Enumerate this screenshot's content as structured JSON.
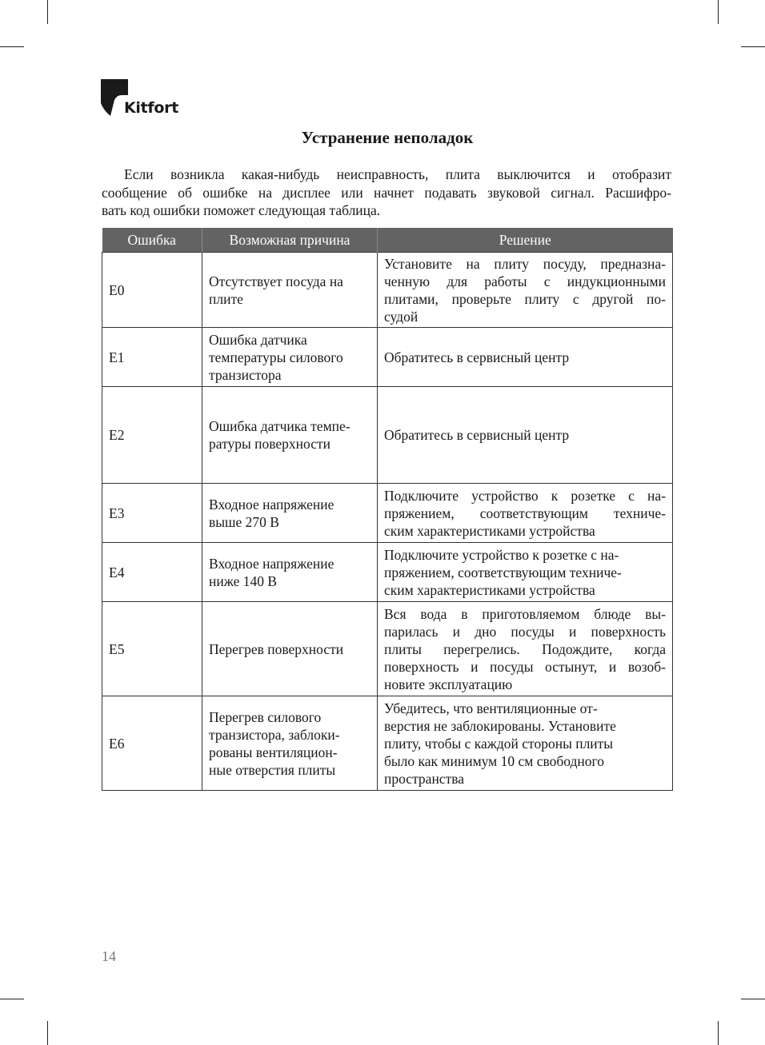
{
  "brand": "Kitfort",
  "title": "Устранение неполадок",
  "intro_lines": [
    "Если возникла какая-нибудь неисправность, плита выключится и отобразит",
    "сообщение об ошибке на дисплее или начнет подавать звуковой сигнал. Расшифро-",
    "вать код ошибки поможет следующая таблица."
  ],
  "table": {
    "headers": [
      "Ошибка",
      "Возможная причина",
      "Решение"
    ],
    "rows": [
      {
        "code": "E0",
        "h": 94,
        "cause": [
          "Отсутствует посуда на",
          "плите"
        ],
        "solution": [
          "Установите на плиту посуду, предназна-",
          "ченную для работы с индукционными",
          "плитами, проверьте плиту с другой по-",
          "судой"
        ],
        "justify": true
      },
      {
        "code": "E1",
        "h": 74,
        "cause": [
          "Ошибка датчика",
          "температуры силового",
          "транзистора"
        ],
        "solution": [
          "Обратитесь в сервисный центр"
        ],
        "justify": false
      },
      {
        "code": "E2",
        "h": 121,
        "cause": [
          "Ошибка датчика темпе-",
          "ратуры поверхности"
        ],
        "solution": [
          "Обратитесь в сервисный центр"
        ],
        "justify": false
      },
      {
        "code": "E3",
        "h": 74,
        "cause": [
          "Входное напряжение",
          "выше 270 В"
        ],
        "solution": [
          "Подключите устройство к розетке с на-",
          "пряжением, соответствующим техниче-",
          "ским характеристиками устройства"
        ],
        "justify": true
      },
      {
        "code": "E4",
        "h": 74,
        "cause": [
          "Входное напряжение",
          "ниже 140 В"
        ],
        "solution": [
          "Подключите устройство к розетке с на-",
          "пряжением, соответствующим техниче-",
          "ским характеристиками устройства"
        ],
        "justify": false
      },
      {
        "code": "E5",
        "h": 118,
        "cause": [
          "Перегрев поверхности"
        ],
        "solution": [
          "Вся вода в приготовляемом блюде вы-",
          "парилась и дно посуды и поверхность",
          "плиты перегрелись. Подождите, когда",
          "поверхность и посуды остынут, и возоб-",
          "новите эксплуатацию"
        ],
        "justify": true
      },
      {
        "code": "E6",
        "h": 118,
        "cause": [
          "Перегрев силового",
          "транзистора, заблоки-",
          "рованы вентиляцион-",
          "ные отверстия плиты"
        ],
        "solution": [
          "Убедитесь, что вентиляционные от-",
          "верстия не заблокированы. Установите",
          "плиту, чтобы с каждой стороны плиты",
          "было как минимум 10 см свободного",
          "пространства"
        ],
        "justify": false
      }
    ]
  },
  "page_number": "14",
  "colors": {
    "header_bg": "#636363",
    "header_text": "#ffffff"
  }
}
